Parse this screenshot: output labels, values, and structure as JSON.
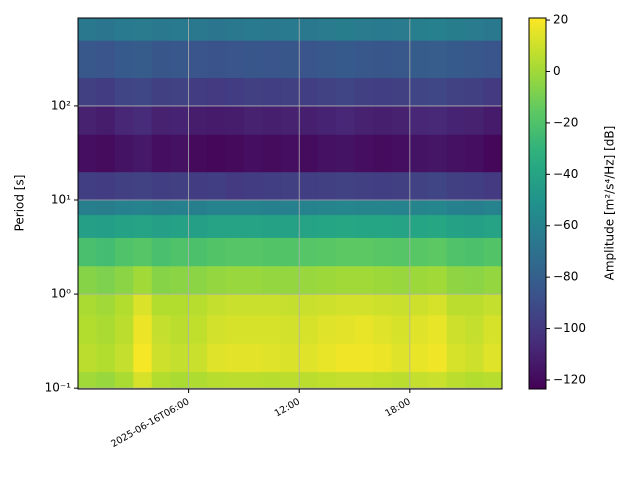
{
  "chart_data": {
    "type": "heatmap",
    "colormap": "viridis",
    "ylabel": "Period [s]",
    "yscale": "log",
    "grid": true,
    "colorbar_label": "Amplitude [m²/s⁴/Hz] [dB]",
    "x_edges": [
      "2025-06-16T00:00",
      "2025-06-16T01:00",
      "2025-06-16T02:00",
      "2025-06-16T03:00",
      "2025-06-16T04:00",
      "2025-06-16T05:00",
      "2025-06-16T06:00",
      "2025-06-16T07:00",
      "2025-06-16T08:00",
      "2025-06-16T09:00",
      "2025-06-16T10:00",
      "2025-06-16T11:00",
      "2025-06-16T12:00",
      "2025-06-16T13:00",
      "2025-06-16T14:00",
      "2025-06-16T15:00",
      "2025-06-16T16:00",
      "2025-06-16T17:00",
      "2025-06-16T18:00",
      "2025-06-16T19:00",
      "2025-06-16T20:00",
      "2025-06-16T21:00",
      "2025-06-16T22:00",
      "2025-06-16T23:00"
    ],
    "xlim": [
      "2025-06-16T00:00",
      "2025-06-16T23:00"
    ],
    "xticks": [
      {
        "value": "2025-06-16T06:00",
        "label": "2025-06-16T06:00"
      },
      {
        "value": "2025-06-16T12:00",
        "label": "12:00"
      },
      {
        "value": "2025-06-16T18:00",
        "label": "18:00"
      }
    ],
    "y_edges": [
      0.098,
      0.15,
      0.3,
      0.6,
      1,
      2,
      4,
      7,
      10,
      20,
      50,
      100,
      200,
      500,
      860
    ],
    "ylim": [
      0.098,
      860
    ],
    "yticks": [
      {
        "value": 0.1,
        "label": "10⁻¹"
      },
      {
        "value": 1,
        "label": "10⁰"
      },
      {
        "value": 10,
        "label": "10¹"
      },
      {
        "value": 100,
        "label": "10²"
      }
    ],
    "clim": [
      -123.5,
      20.8
    ],
    "cticks": [
      {
        "value": -120,
        "label": "−120"
      },
      {
        "value": -100,
        "label": "−100"
      },
      {
        "value": -80,
        "label": "−80"
      },
      {
        "value": -60,
        "label": "−60"
      },
      {
        "value": -40,
        "label": "−40"
      },
      {
        "value": -20,
        "label": "−20"
      },
      0,
      20
    ],
    "z": [
      [
        0,
        -2,
        2,
        12,
        4,
        2,
        3,
        5,
        6,
        6,
        5,
        6,
        6,
        7,
        8,
        8,
        7,
        6,
        8,
        9,
        6,
        4,
        5
      ],
      [
        6,
        4,
        8,
        19,
        10,
        8,
        9,
        14,
        15,
        15,
        14,
        13,
        14,
        16,
        18,
        18,
        17,
        14,
        16,
        18,
        12,
        10,
        14
      ],
      [
        4,
        2,
        6,
        17,
        8,
        6,
        7,
        11,
        12,
        12,
        12,
        11,
        12,
        14,
        15,
        16,
        14,
        12,
        14,
        16,
        10,
        8,
        12
      ],
      [
        2,
        0,
        4,
        13,
        4,
        4,
        5,
        8,
        9,
        9,
        9,
        8,
        9,
        10,
        11,
        11,
        10,
        9,
        10,
        12,
        6,
        6,
        8
      ],
      [
        -6,
        -8,
        -5,
        0,
        -6,
        -5,
        -5,
        -3,
        -2,
        -2,
        -3,
        -3,
        -2,
        -1,
        0,
        0,
        -1,
        -2,
        -1,
        0,
        -4,
        -5,
        -3
      ],
      [
        -22,
        -24,
        -20,
        -18,
        -22,
        -20,
        -21,
        -19,
        -18,
        -18,
        -19,
        -19,
        -18,
        -17,
        -16,
        -16,
        -17,
        -18,
        -17,
        -16,
        -20,
        -21,
        -19
      ],
      [
        -42,
        -43,
        -41,
        -40,
        -42,
        -41,
        -42,
        -40,
        -40,
        -40,
        -41,
        -41,
        -40,
        -39,
        -38,
        -39,
        -39,
        -40,
        -39,
        -38,
        -41,
        -42,
        -40
      ],
      [
        -62,
        -63,
        -61,
        -60,
        -62,
        -61,
        -62,
        -60,
        -60,
        -60,
        -61,
        -61,
        -60,
        -59,
        -58,
        -59,
        -59,
        -60,
        -59,
        -58,
        -61,
        -62,
        -60
      ],
      [
        -97,
        -98,
        -96,
        -95,
        -97,
        -96,
        -98,
        -97,
        -99,
        -98,
        -97,
        -96,
        -97,
        -96,
        -95,
        -96,
        -97,
        -96,
        -95,
        -94,
        -96,
        -97,
        -99
      ],
      [
        -118,
        -119,
        -116,
        -114,
        -118,
        -117,
        -120,
        -121,
        -120,
        -118,
        -119,
        -118,
        -119,
        -117,
        -116,
        -118,
        -119,
        -118,
        -116,
        -115,
        -117,
        -118,
        -121
      ],
      [
        -110,
        -112,
        -108,
        -106,
        -110,
        -109,
        -112,
        -113,
        -112,
        -110,
        -111,
        -110,
        -111,
        -109,
        -108,
        -110,
        -111,
        -110,
        -108,
        -107,
        -109,
        -110,
        -113
      ],
      [
        -96,
        -98,
        -94,
        -93,
        -96,
        -95,
        -98,
        -99,
        -98,
        -96,
        -97,
        -96,
        -97,
        -95,
        -94,
        -96,
        -97,
        -96,
        -94,
        -93,
        -95,
        -96,
        -99
      ],
      [
        -84,
        -86,
        -83,
        -82,
        -85,
        -84,
        -86,
        -87,
        -86,
        -85,
        -86,
        -85,
        -86,
        -84,
        -83,
        -84,
        -85,
        -84,
        -82,
        -81,
        -83,
        -84,
        -86
      ],
      [
        -66,
        -67,
        -65,
        -64,
        -66,
        -65,
        -66,
        -67,
        -66,
        -65,
        -66,
        -65,
        -66,
        -64,
        -63,
        -64,
        -65,
        -64,
        -62,
        -61,
        -63,
        -64,
        -66
      ]
    ]
  }
}
